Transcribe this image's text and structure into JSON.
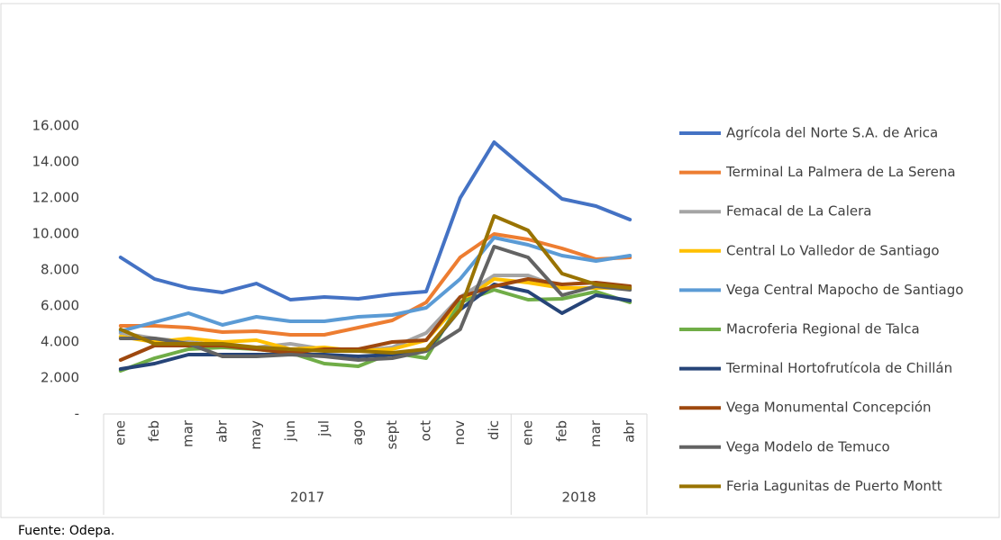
{
  "chart_data": {
    "type": "line",
    "groups": [
      {
        "label": "2017",
        "categories": [
          "ene",
          "feb",
          "mar",
          "abr",
          "may",
          "jun",
          "jul",
          "ago",
          "sept",
          "oct",
          "nov",
          "dic"
        ]
      },
      {
        "label": "2018",
        "categories": [
          "ene",
          "feb",
          "mar",
          "abr"
        ]
      }
    ],
    "ylim": [
      0,
      16000
    ],
    "yticks": [
      {
        "value": 0,
        "label": "-"
      },
      {
        "value": 2000,
        "label": "2.000"
      },
      {
        "value": 4000,
        "label": "4.000"
      },
      {
        "value": 6000,
        "label": "6.000"
      },
      {
        "value": 8000,
        "label": "8.000"
      },
      {
        "value": 10000,
        "label": "10.000"
      },
      {
        "value": 12000,
        "label": "12.000"
      },
      {
        "value": 14000,
        "label": "14.000"
      },
      {
        "value": 16000,
        "label": "16.000"
      }
    ],
    "grid": false,
    "legend": "right",
    "series": [
      {
        "name": "Agrícola del Norte S.A. de Arica",
        "color": "#4472c4",
        "values": [
          8700,
          7500,
          7000,
          6750,
          7250,
          6350,
          6500,
          6400,
          6650,
          6800,
          12000,
          15100,
          13500,
          11950,
          11550,
          10800
        ]
      },
      {
        "name": "Terminal La Palmera de La Serena",
        "color": "#ed7d31",
        "values": [
          4900,
          4900,
          4800,
          4550,
          4600,
          4400,
          4400,
          4800,
          5200,
          6200,
          8700,
          10000,
          9700,
          9200,
          8600,
          8700
        ]
      },
      {
        "name": "Femacal de La Calera",
        "color": "#a5a5a5",
        "values": [
          4500,
          4200,
          4000,
          3800,
          3700,
          3900,
          3600,
          3500,
          3700,
          4500,
          6500,
          7700,
          7700,
          7000,
          7000,
          7000
        ]
      },
      {
        "name": "Central Lo Valledor de Santiago",
        "color": "#ffc000",
        "values": [
          4300,
          4000,
          4200,
          4000,
          4100,
          3600,
          3700,
          3500,
          3600,
          4100,
          6200,
          7500,
          7300,
          7000,
          7000,
          7000
        ]
      },
      {
        "name": "Vega Central Mapocho de Santiago",
        "color": "#5b9bd5",
        "values": [
          4600,
          5100,
          5600,
          4950,
          5400,
          5150,
          5150,
          5400,
          5500,
          5900,
          7500,
          9800,
          9400,
          8800,
          8500,
          8800
        ]
      },
      {
        "name": "Macroferia Regional de Talca",
        "color": "#70ad47",
        "values": [
          2400,
          3100,
          3600,
          3700,
          3600,
          3400,
          2800,
          2650,
          3400,
          3100,
          6200,
          6900,
          6350,
          6400,
          6800,
          6200
        ]
      },
      {
        "name": "Terminal Hortofrutícola de Chillán",
        "color": "#264478",
        "values": [
          2500,
          2800,
          3300,
          3300,
          3300,
          3300,
          3300,
          3200,
          3300,
          3500,
          5800,
          7200,
          6800,
          5600,
          6600,
          6300
        ]
      },
      {
        "name": "Vega Monumental Concepción",
        "color": "#9e480e",
        "values": [
          3000,
          3800,
          3800,
          3800,
          3600,
          3400,
          3600,
          3600,
          4000,
          4100,
          6500,
          7100,
          7500,
          7200,
          7300,
          7100
        ]
      },
      {
        "name": "Vega Modelo de Temuco",
        "color": "#636363",
        "values": [
          4200,
          4200,
          3900,
          3200,
          3200,
          3300,
          3200,
          3000,
          3100,
          3500,
          4700,
          9300,
          8700,
          6600,
          7100,
          6900
        ]
      },
      {
        "name": "Feria Lagunitas de Puerto Montt",
        "color": "#997300",
        "values": [
          4700,
          3900,
          3900,
          3900,
          3700,
          3600,
          3500,
          3500,
          3400,
          3600,
          5800,
          11000,
          10200,
          7800,
          7200,
          7000
        ]
      }
    ]
  },
  "footer": "Fuente: Odepa."
}
